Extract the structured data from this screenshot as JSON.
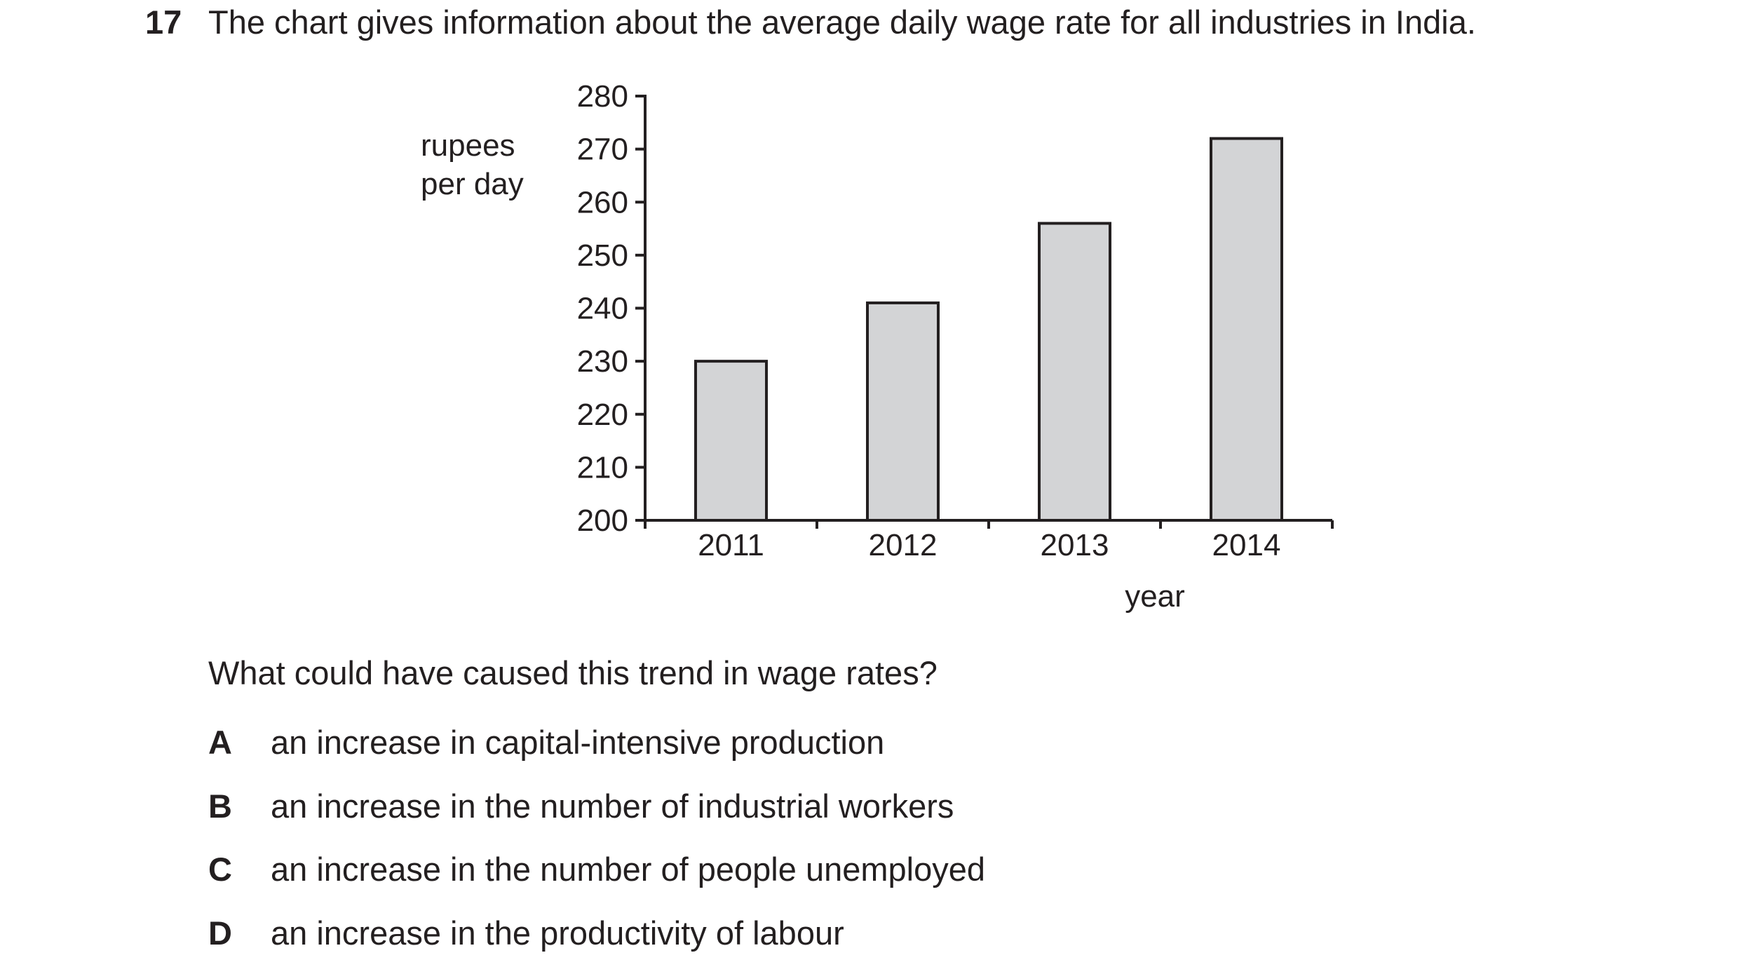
{
  "question": {
    "number": "17",
    "stem": "The chart gives information about the average daily wage rate for all industries in India.",
    "prompt": "What could have caused this trend in wage rates?",
    "options": [
      {
        "letter": "A",
        "text": "an increase in capital-intensive production"
      },
      {
        "letter": "B",
        "text": "an increase in the number of industrial workers"
      },
      {
        "letter": "C",
        "text": "an increase in the number of people unemployed"
      },
      {
        "letter": "D",
        "text": "an increase in the productivity of labour"
      }
    ]
  },
  "chart_data": {
    "type": "bar",
    "categories": [
      "2011",
      "2012",
      "2013",
      "2014"
    ],
    "values": [
      230,
      241,
      256,
      272
    ],
    "title": "",
    "xlabel": "year",
    "ylabel_lines": [
      "rupees",
      "per day"
    ],
    "ylim": [
      200,
      280
    ],
    "yticks": [
      200,
      210,
      220,
      230,
      240,
      250,
      260,
      270,
      280
    ],
    "grid": false,
    "bar_fill": "#d3d4d6",
    "stroke": "#231f20"
  }
}
